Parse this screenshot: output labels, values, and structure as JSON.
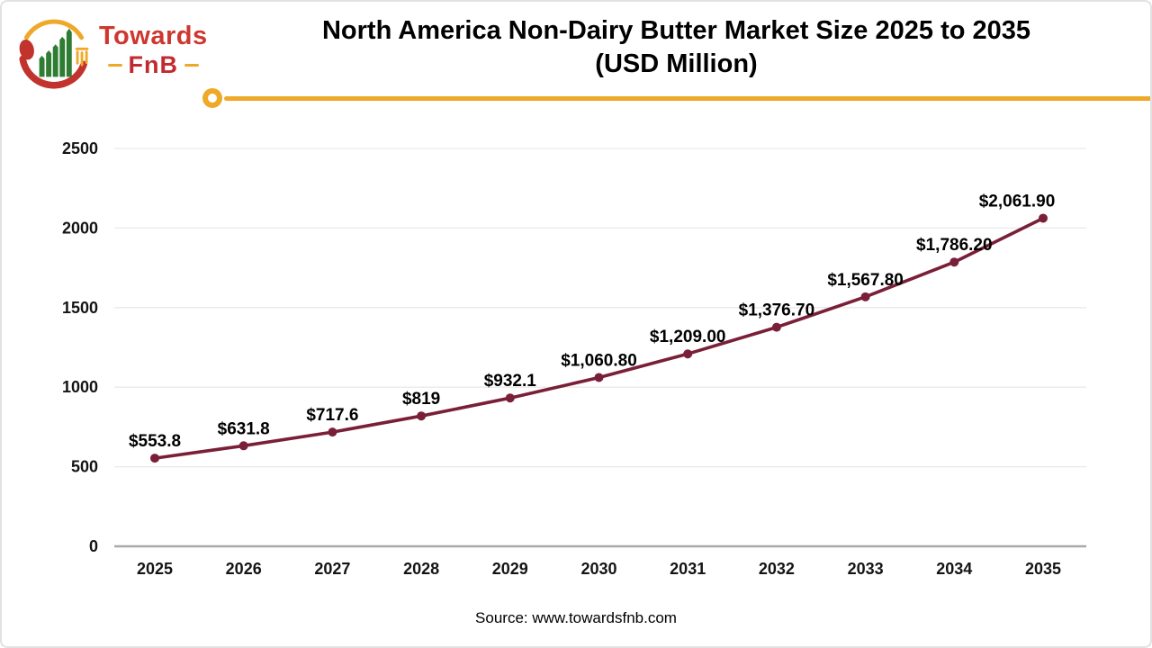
{
  "logo": {
    "brand_top": "Towards",
    "brand_bottom": "FnB"
  },
  "title_line1": "North America Non-Dairy Butter Market Size 2025 to 2035",
  "title_line2": "(USD Million)",
  "source": "Source: www.towardsfnb.com",
  "colors": {
    "accent_gold": "#EFA928",
    "brand_red": "#CE372F",
    "line_color": "#7A1F38",
    "grid_color": "#E9E9E9",
    "axis_color": "#A9A9A9"
  },
  "chart_data": {
    "type": "line",
    "title": "North America Non-Dairy Butter Market Size 2025 to 2035 (USD Million)",
    "categories": [
      "2025",
      "2026",
      "2027",
      "2028",
      "2029",
      "2030",
      "2031",
      "2032",
      "2033",
      "2034",
      "2035"
    ],
    "values": [
      553.8,
      631.8,
      717.6,
      819,
      932.1,
      1060.8,
      1209.0,
      1376.7,
      1567.8,
      1786.2,
      2061.9
    ],
    "point_labels": [
      "$553.8",
      "$631.8",
      "$717.6",
      "$819",
      "$932.1",
      "$1,060.80",
      "$1,209.00",
      "$1,376.70",
      "$1,567.80",
      "$1,786.20",
      "$2,061.90"
    ],
    "xlabel": "",
    "ylabel": "",
    "ylim": [
      0,
      2500
    ],
    "yticks": [
      0,
      500,
      1000,
      1500,
      2000,
      2500
    ],
    "grid": true,
    "legend": "none",
    "line_color": "#7A1F38",
    "marker": "circle"
  }
}
